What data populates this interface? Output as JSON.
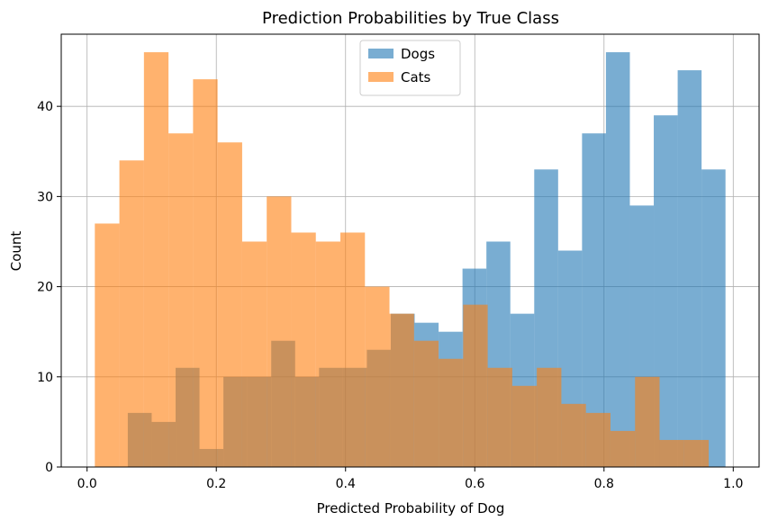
{
  "chart_data": {
    "type": "bar",
    "title": "Prediction Probabilities by True Class",
    "xlabel": "Predicted Probability of Dog",
    "ylabel": "Count",
    "xlim": [
      -0.04,
      1.04
    ],
    "ylim": [
      0,
      48
    ],
    "grid": true,
    "legend_position": "top-center",
    "x_ticks": [
      "0.0",
      "0.2",
      "0.4",
      "0.6",
      "0.8",
      "1.0"
    ],
    "y_ticks": [
      "0",
      "10",
      "20",
      "30",
      "40"
    ],
    "series": [
      {
        "name": "Dogs",
        "color": "#1f77b4",
        "opacity": 0.6,
        "bin_edges": [
          0.063,
          0.1,
          0.137,
          0.174,
          0.211,
          0.248,
          0.285,
          0.322,
          0.359,
          0.396,
          0.433,
          0.47,
          0.507,
          0.544,
          0.581,
          0.618,
          0.655,
          0.692,
          0.729,
          0.766,
          0.803,
          0.84,
          0.877,
          0.914,
          0.951,
          0.988
        ],
        "values": [
          6,
          5,
          11,
          2,
          10,
          10,
          14,
          10,
          11,
          11,
          13,
          17,
          16,
          15,
          22,
          25,
          17,
          33,
          24,
          37,
          46,
          29,
          39,
          44,
          33
        ]
      },
      {
        "name": "Cats",
        "color": "#ff7f0e",
        "opacity": 0.6,
        "bin_edges": [
          0.012,
          0.05,
          0.088,
          0.126,
          0.164,
          0.202,
          0.24,
          0.278,
          0.316,
          0.354,
          0.392,
          0.43,
          0.468,
          0.506,
          0.544,
          0.582,
          0.62,
          0.658,
          0.696,
          0.734,
          0.772,
          0.81,
          0.848,
          0.886,
          0.924,
          0.962
        ],
        "values": [
          27,
          34,
          46,
          37,
          43,
          36,
          25,
          30,
          26,
          25,
          26,
          20,
          17,
          14,
          12,
          18,
          11,
          9,
          11,
          7,
          6,
          4,
          10,
          3,
          3
        ]
      }
    ]
  }
}
